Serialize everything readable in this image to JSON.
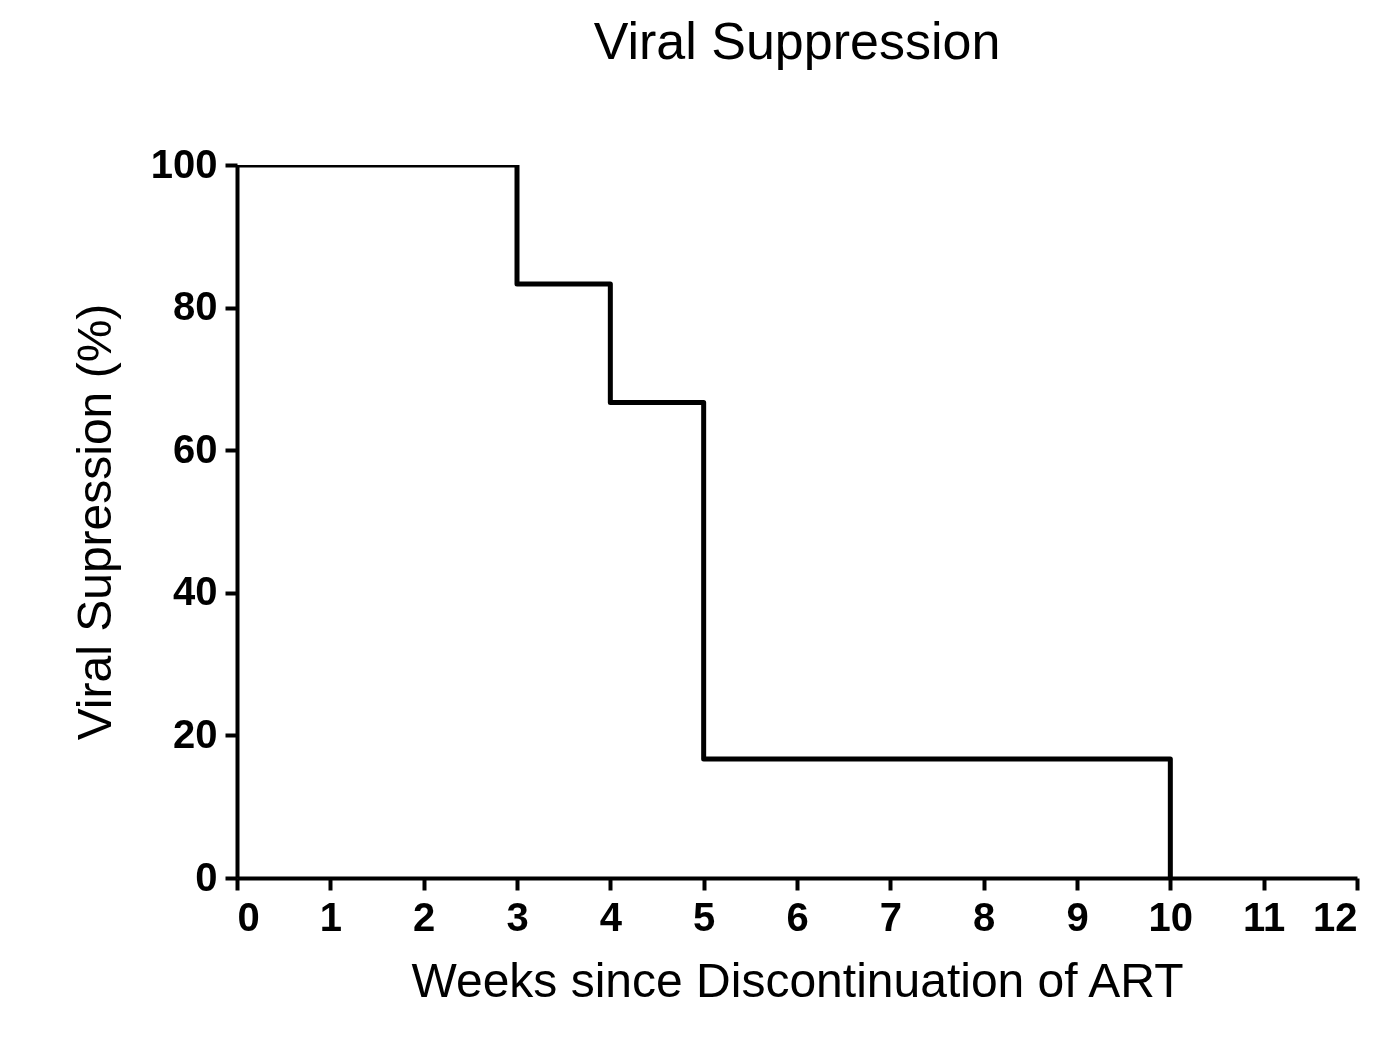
{
  "chart_data": {
    "type": "step",
    "title": "Viral Suppression",
    "xlabel": "Weeks since Discontinuation of ART",
    "ylabel": "Viral Supression (%)",
    "x": [
      0,
      3,
      4,
      5,
      10
    ],
    "series": [
      {
        "color": "#000000",
        "values": [
          100,
          83.3,
          66.7,
          16.7,
          0
        ]
      }
    ],
    "xlim": [
      0,
      12
    ],
    "xticks": [
      0,
      1,
      2,
      3,
      4,
      5,
      6,
      7,
      8,
      9,
      10,
      11,
      12
    ],
    "ylim": [
      0,
      100
    ],
    "yticks": [
      0,
      20,
      40,
      60,
      80,
      100
    ],
    "grid": false,
    "line_style": "solid"
  }
}
